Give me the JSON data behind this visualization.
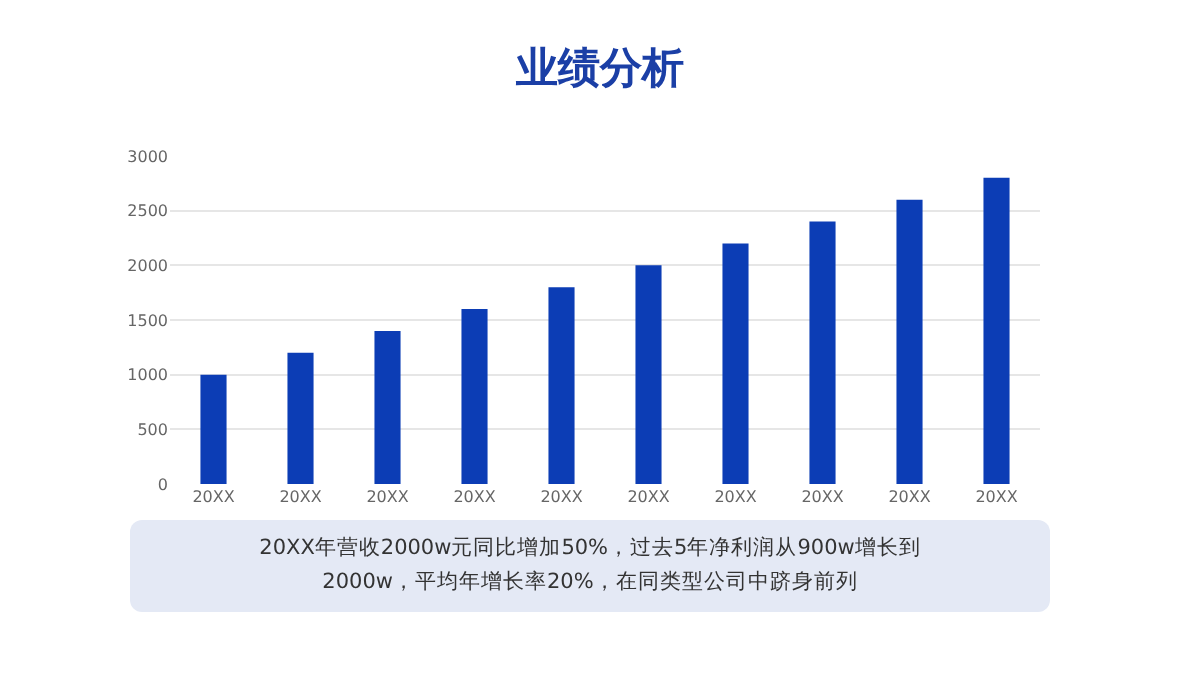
{
  "chart_data": {
    "type": "bar",
    "title": "业绩分析",
    "categories": [
      "20XX",
      "20XX",
      "20XX",
      "20XX",
      "20XX",
      "20XX",
      "20XX",
      "20XX",
      "20XX",
      "20XX"
    ],
    "values": [
      1000,
      1200,
      1400,
      1600,
      1800,
      2000,
      2200,
      2400,
      2600,
      2800
    ],
    "color": "#0c3db5",
    "ylim": [
      0,
      3000
    ],
    "yticks": [
      0,
      500,
      1000,
      1500,
      2000,
      2500,
      3000
    ],
    "grid": "y",
    "annotations": [
      "20XX年营收2000w元同比增加50%，过去5年净利润从900w增长到2000w，平均年增长率20%，在同类型公司中跻身前列"
    ]
  }
}
